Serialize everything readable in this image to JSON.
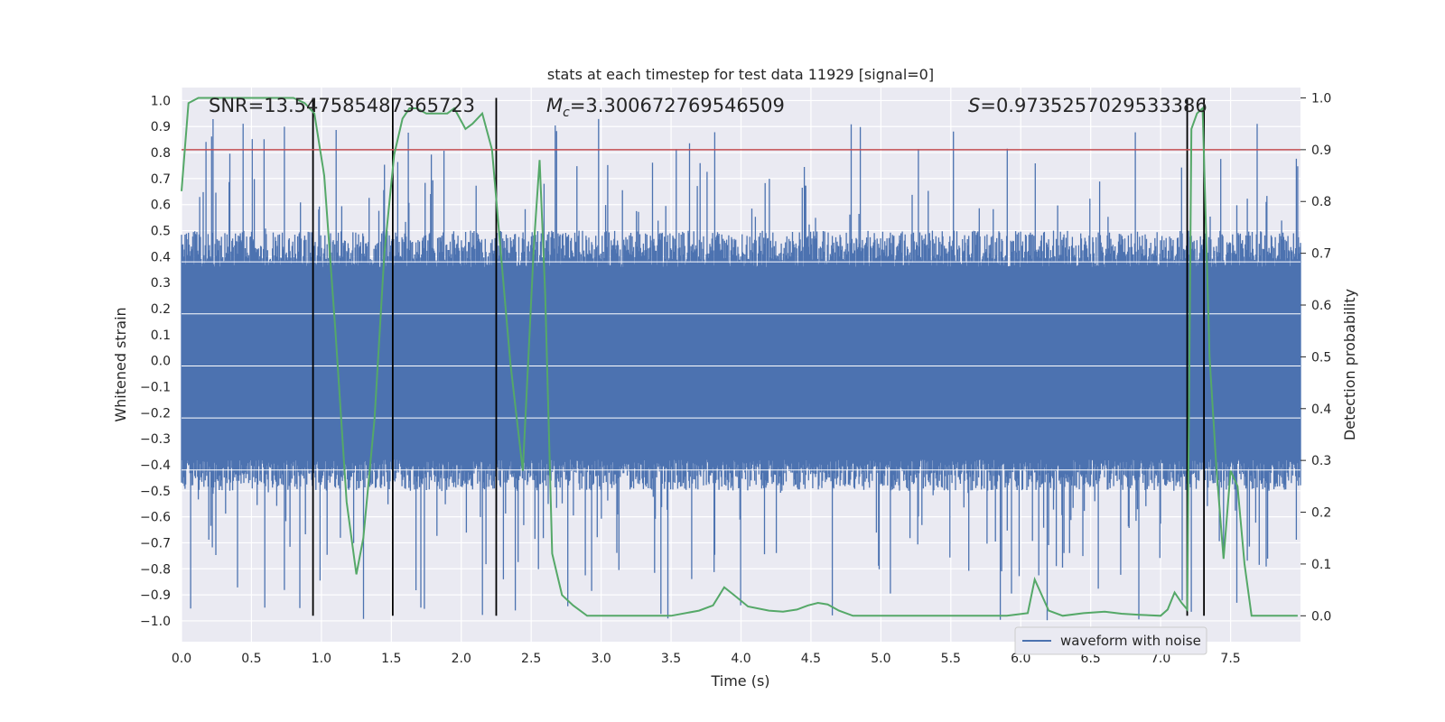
{
  "chart_data": {
    "type": "line",
    "title": "stats at each timestep for test data 11929 [signal=0]",
    "xlabel": "Time (s)",
    "ylabel_left": "Whitened strain",
    "ylabel_right": "Detection probability",
    "xlim": [
      0.0,
      8.0
    ],
    "ylim_left": [
      -1.08,
      1.05
    ],
    "ylim_right": [
      -0.05,
      1.02
    ],
    "x_ticks": [
      "0.0",
      "0.5",
      "1.0",
      "1.5",
      "2.0",
      "2.5",
      "3.0",
      "3.5",
      "4.0",
      "4.5",
      "5.0",
      "5.5",
      "6.0",
      "6.5",
      "7.0",
      "7.5"
    ],
    "y_left_ticks": [
      "1.0",
      "0.9",
      "0.8",
      "0.7",
      "0.6",
      "0.5",
      "0.4",
      "0.3",
      "0.2",
      "0.1",
      "0.0",
      "-0.1",
      "-0.2",
      "-0.3",
      "-0.4",
      "-0.5",
      "-0.6",
      "-0.7",
      "-0.8",
      "-0.9",
      "-1.0"
    ],
    "y_right_ticks": [
      "1.0",
      "0.9",
      "0.8",
      "0.7",
      "0.6",
      "0.5",
      "0.4",
      "0.3",
      "0.2",
      "0.1",
      "0.0"
    ],
    "grid": true,
    "annotations": {
      "snr": "SNR=13.547585487365723",
      "mc_symbol": "M",
      "mc_sub": "c",
      "mc_value": "=3.300672769546509",
      "s_symbol": "S",
      "s_value": "=0.9735257029533386"
    },
    "threshold": {
      "value": 0.9,
      "color": "#c44e52"
    },
    "vertical_lines_x": [
      0.94,
      1.51,
      2.25,
      7.19,
      7.31
    ],
    "series": [
      {
        "name": "waveform with noise",
        "color": "#4c72b0",
        "axis": "left",
        "envelope_points": 1600,
        "typical_upper": 0.38,
        "typical_lower": -0.4,
        "spike_max": 0.93,
        "spike_min": -1.0
      },
      {
        "name": "detection probability",
        "color": "#55a868",
        "axis": "right",
        "x": [
          0.0,
          0.05,
          0.12,
          0.2,
          0.3,
          0.4,
          0.5,
          0.6,
          0.7,
          0.8,
          0.88,
          0.95,
          1.02,
          1.1,
          1.18,
          1.25,
          1.3,
          1.38,
          1.45,
          1.52,
          1.58,
          1.63,
          1.68,
          1.75,
          1.82,
          1.9,
          1.95,
          2.03,
          2.08,
          2.15,
          2.22,
          2.28,
          2.35,
          2.44,
          2.52,
          2.56,
          2.6,
          2.65,
          2.72,
          2.8,
          2.9,
          3.0,
          3.1,
          3.3,
          3.5,
          3.7,
          3.8,
          3.88,
          3.95,
          4.05,
          4.2,
          4.3,
          4.4,
          4.48,
          4.55,
          4.62,
          4.7,
          4.8,
          5.0,
          5.3,
          5.6,
          5.9,
          6.05,
          6.1,
          6.15,
          6.2,
          6.3,
          6.45,
          6.6,
          6.72,
          6.85,
          7.0,
          7.05,
          7.1,
          7.15,
          7.19,
          7.22,
          7.26,
          7.3,
          7.35,
          7.4,
          7.45,
          7.5,
          7.55,
          7.6,
          7.65,
          7.7,
          7.8,
          7.98
        ],
        "y": [
          0.82,
          0.99,
          1.0,
          1.0,
          1.0,
          1.0,
          1.0,
          1.0,
          1.0,
          1.0,
          0.99,
          0.97,
          0.85,
          0.55,
          0.22,
          0.08,
          0.15,
          0.38,
          0.7,
          0.89,
          0.96,
          0.98,
          0.98,
          0.97,
          0.97,
          0.97,
          0.98,
          0.94,
          0.95,
          0.97,
          0.9,
          0.71,
          0.49,
          0.28,
          0.72,
          0.88,
          0.62,
          0.12,
          0.04,
          0.02,
          0.0,
          0.0,
          0.0,
          0.0,
          0.0,
          0.01,
          0.02,
          0.055,
          0.04,
          0.018,
          0.01,
          0.008,
          0.012,
          0.02,
          0.025,
          0.022,
          0.01,
          0.0,
          0.0,
          0.0,
          0.0,
          0.0,
          0.005,
          0.07,
          0.04,
          0.01,
          0.0,
          0.005,
          0.008,
          0.004,
          0.002,
          0.0,
          0.012,
          0.045,
          0.025,
          0.012,
          0.94,
          0.97,
          0.98,
          0.5,
          0.28,
          0.11,
          0.28,
          0.25,
          0.1,
          0.0,
          0.0,
          0.0,
          0.0
        ]
      }
    ],
    "legend": {
      "label": "waveform with noise",
      "location": "lower-right"
    }
  }
}
